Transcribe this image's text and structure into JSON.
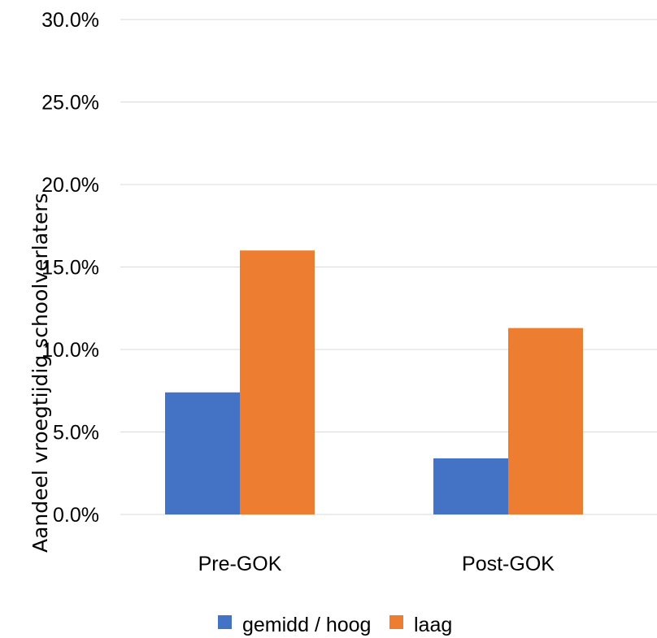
{
  "chart_data": {
    "type": "bar",
    "title": "",
    "xlabel": "",
    "ylabel": "Aandeel vroegtijdig schoolverlaters",
    "categories": [
      "Pre-GOK",
      "Post-GOK"
    ],
    "series": [
      {
        "name": "gemidd / hoog",
        "color": "#4472C4",
        "values": [
          7.4,
          3.4
        ]
      },
      {
        "name": "laag",
        "color": "#ED7D31",
        "values": [
          16.0,
          11.3
        ]
      }
    ],
    "ylim": [
      0,
      30
    ],
    "yticks": [
      0,
      5,
      10,
      15,
      20,
      25,
      30
    ],
    "ytick_labels": [
      "0.0%",
      "5.0%",
      "10.0%",
      "15.0%",
      "20.0%",
      "25.0%",
      "30.0%"
    ],
    "grid": true,
    "gridline_color": "#D9D9D9",
    "legend_position": "bottom"
  }
}
